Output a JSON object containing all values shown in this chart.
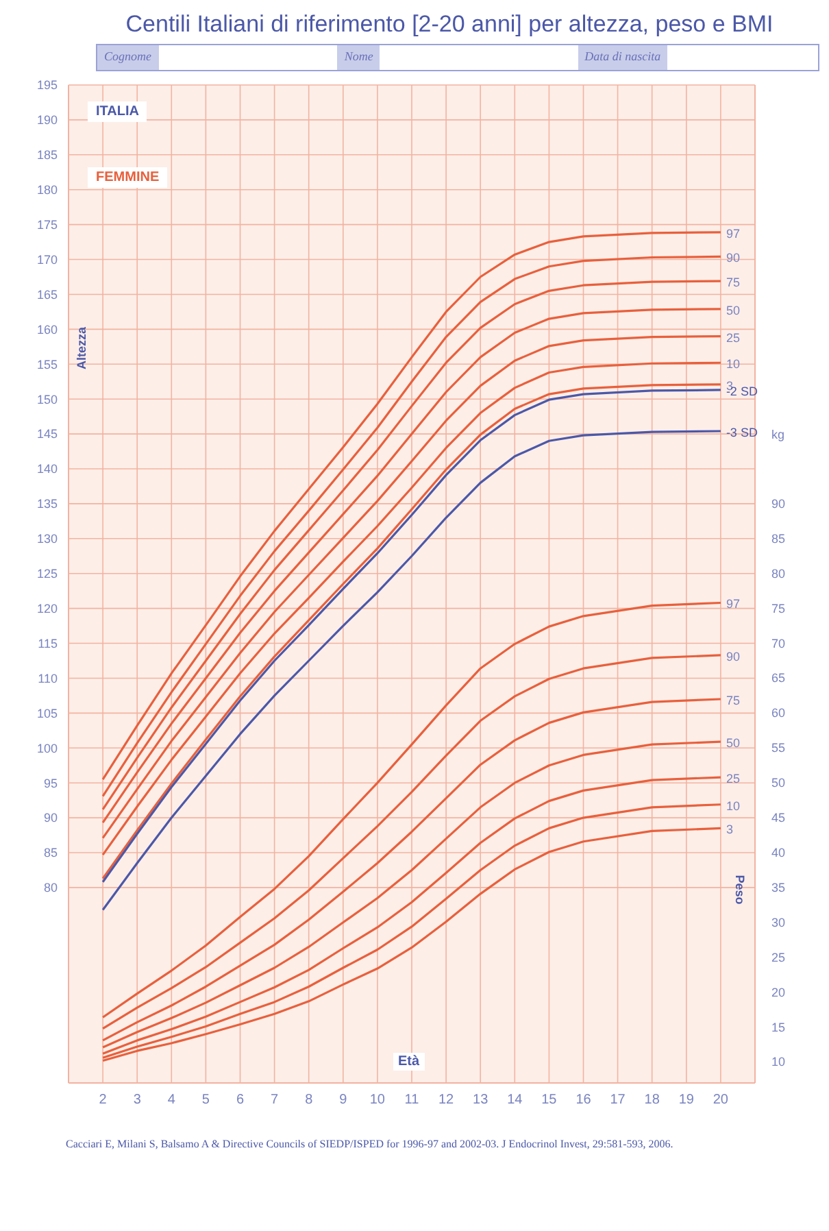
{
  "chart_data": {
    "type": "line",
    "title": "Centili Italiani di riferimento [2-20 anni] per altezza, peso e BMI",
    "xlabel": "Età",
    "ylabel": "Altezza",
    "y2label": "Peso",
    "annotations": [
      "Cognome",
      "Nome",
      "Data di nascita",
      "ITALIA",
      "FEMMINE",
      "kg",
      "Cacciari E, Milani S, Balsamo A & Directive Councils of SIEDP/ISPED for 1996-97 and 2002-03. J Endocrinol Invest, 29:581-593, 2006."
    ],
    "x": [
      2,
      3,
      4,
      5,
      6,
      7,
      8,
      9,
      10,
      11,
      12,
      13,
      14,
      15,
      16,
      18,
      20
    ],
    "series": [
      {
        "name": "97",
        "color": "#e8603c",
        "values": [
          95.5,
          103.2,
          110.7,
          117.6,
          124.6,
          131.1,
          137.1,
          143.1,
          149.3,
          156,
          162.5,
          167.5,
          170.7,
          172.5,
          173.3,
          173.8,
          173.9
        ]
      },
      {
        "name": "90",
        "color": "#e8603c",
        "values": [
          93.1,
          100.7,
          108.0,
          114.9,
          121.8,
          128.2,
          134.0,
          139.9,
          145.9,
          152.5,
          158.9,
          163.9,
          167.2,
          169.0,
          169.8,
          170.3,
          170.4
        ]
      },
      {
        "name": "75",
        "color": "#e8603c",
        "values": [
          91.2,
          98.6,
          105.8,
          112.5,
          119.2,
          125.5,
          131.2,
          136.9,
          142.7,
          149,
          155.2,
          160.2,
          163.6,
          165.5,
          166.3,
          166.8,
          166.9
        ]
      },
      {
        "name": "50",
        "color": "#e8603c",
        "values": [
          89.3,
          96.5,
          103.5,
          110,
          116.5,
          122.5,
          128,
          133.5,
          139,
          145,
          151,
          156,
          159.5,
          161.5,
          162.3,
          162.8,
          162.9
        ]
      },
      {
        "name": "25",
        "color": "#e8603c",
        "values": [
          87.1,
          94.1,
          101,
          107.3,
          113.6,
          119.5,
          124.8,
          130.1,
          135.4,
          141.1,
          146.9,
          151.9,
          155.5,
          157.6,
          158.4,
          158.9,
          159.0
        ]
      },
      {
        "name": "10",
        "color": "#e8603c",
        "values": [
          84.7,
          91.6,
          98.3,
          104.5,
          110.7,
          116.4,
          121.5,
          126.7,
          131.8,
          137.3,
          143,
          148,
          151.6,
          153.8,
          154.6,
          155.1,
          155.2
        ]
      },
      {
        "name": "3",
        "color": "#e8603c",
        "values": [
          81.3,
          88.2,
          94.9,
          101.2,
          107.4,
          113.1,
          118.3,
          123.5,
          128.6,
          134.2,
          139.9,
          144.9,
          148.6,
          150.7,
          151.5,
          152,
          152.1
        ]
      },
      {
        "name": "-2 SD",
        "color": "#4b58a8",
        "values": [
          80.8,
          87.7,
          94.4,
          100.6,
          106.8,
          112.5,
          117.6,
          122.8,
          127.9,
          133.4,
          139.1,
          144.1,
          147.7,
          149.9,
          150.7,
          151.2,
          151.3
        ]
      },
      {
        "name": "-3 SD",
        "color": "#4b58a8",
        "values": [
          76.8,
          83.5,
          90,
          96,
          102,
          107.5,
          112.5,
          117.5,
          122.3,
          127.5,
          133,
          138,
          141.8,
          144,
          144.8,
          145.3,
          145.4
        ]
      },
      {
        "name": "97",
        "axis": "y2",
        "color": "#e8603c",
        "values": [
          16.4,
          19.8,
          23.1,
          26.7,
          30.8,
          34.8,
          39.5,
          44.8,
          50,
          55.5,
          61.1,
          66.4,
          69.9,
          72.4,
          73.9,
          75.4,
          75.8
        ]
      },
      {
        "name": "90",
        "axis": "y2",
        "color": "#e8603c",
        "values": [
          14.8,
          17.8,
          20.6,
          23.6,
          27.1,
          30.6,
          34.6,
          39.2,
          43.8,
          48.7,
          53.9,
          58.9,
          62.4,
          64.9,
          66.4,
          67.9,
          68.3
        ]
      },
      {
        "name": "75",
        "axis": "y2",
        "color": "#e8603c",
        "values": [
          13.1,
          15.7,
          18.1,
          20.8,
          23.8,
          26.8,
          30.4,
          34.4,
          38.5,
          43,
          47.8,
          52.6,
          56.1,
          58.6,
          60.1,
          61.6,
          62.0
        ]
      },
      {
        "name": "50",
        "axis": "y2",
        "color": "#e8603c",
        "values": [
          12.1,
          14.3,
          16.3,
          18.5,
          21,
          23.5,
          26.5,
          30,
          33.5,
          37.5,
          42,
          46.5,
          50,
          52.5,
          54,
          55.5,
          55.9
        ]
      },
      {
        "name": "25",
        "axis": "y2",
        "color": "#e8603c",
        "values": [
          11.2,
          13.1,
          14.7,
          16.5,
          18.6,
          20.7,
          23.2,
          26.3,
          29.3,
          32.9,
          37.1,
          41.4,
          44.9,
          47.4,
          48.9,
          50.4,
          50.8
        ]
      },
      {
        "name": "10",
        "axis": "y2",
        "color": "#e8603c",
        "values": [
          10.6,
          12.2,
          13.6,
          15.1,
          16.9,
          18.6,
          20.8,
          23.5,
          26.1,
          29.4,
          33.4,
          37.5,
          41,
          43.5,
          45,
          46.5,
          46.9
        ]
      },
      {
        "name": "3",
        "axis": "y2",
        "color": "#e8603c",
        "values": [
          10.2,
          11.6,
          12.7,
          14,
          15.4,
          16.9,
          18.7,
          21.1,
          23.4,
          26.4,
          30.1,
          34.1,
          37.6,
          40.1,
          41.6,
          43.1,
          43.5
        ]
      }
    ],
    "xlim": [
      1,
      21
    ],
    "xticks": [
      2,
      3,
      4,
      5,
      6,
      7,
      8,
      9,
      10,
      11,
      12,
      13,
      14,
      15,
      16,
      17,
      18,
      19,
      20
    ],
    "ylim": [
      52,
      195
    ],
    "yticks": [
      80,
      85,
      90,
      95,
      100,
      105,
      110,
      115,
      120,
      125,
      130,
      135,
      140,
      145,
      150,
      155,
      160,
      165,
      170,
      175,
      180,
      185,
      190,
      195
    ],
    "y2lim": [
      7,
      150
    ],
    "y2ticks": [
      10,
      15,
      20,
      25,
      30,
      35,
      40,
      45,
      50,
      55,
      60,
      65,
      70,
      75,
      80,
      85,
      90
    ],
    "grid": true,
    "legend": false,
    "marker": "none",
    "line_style": "solid"
  }
}
